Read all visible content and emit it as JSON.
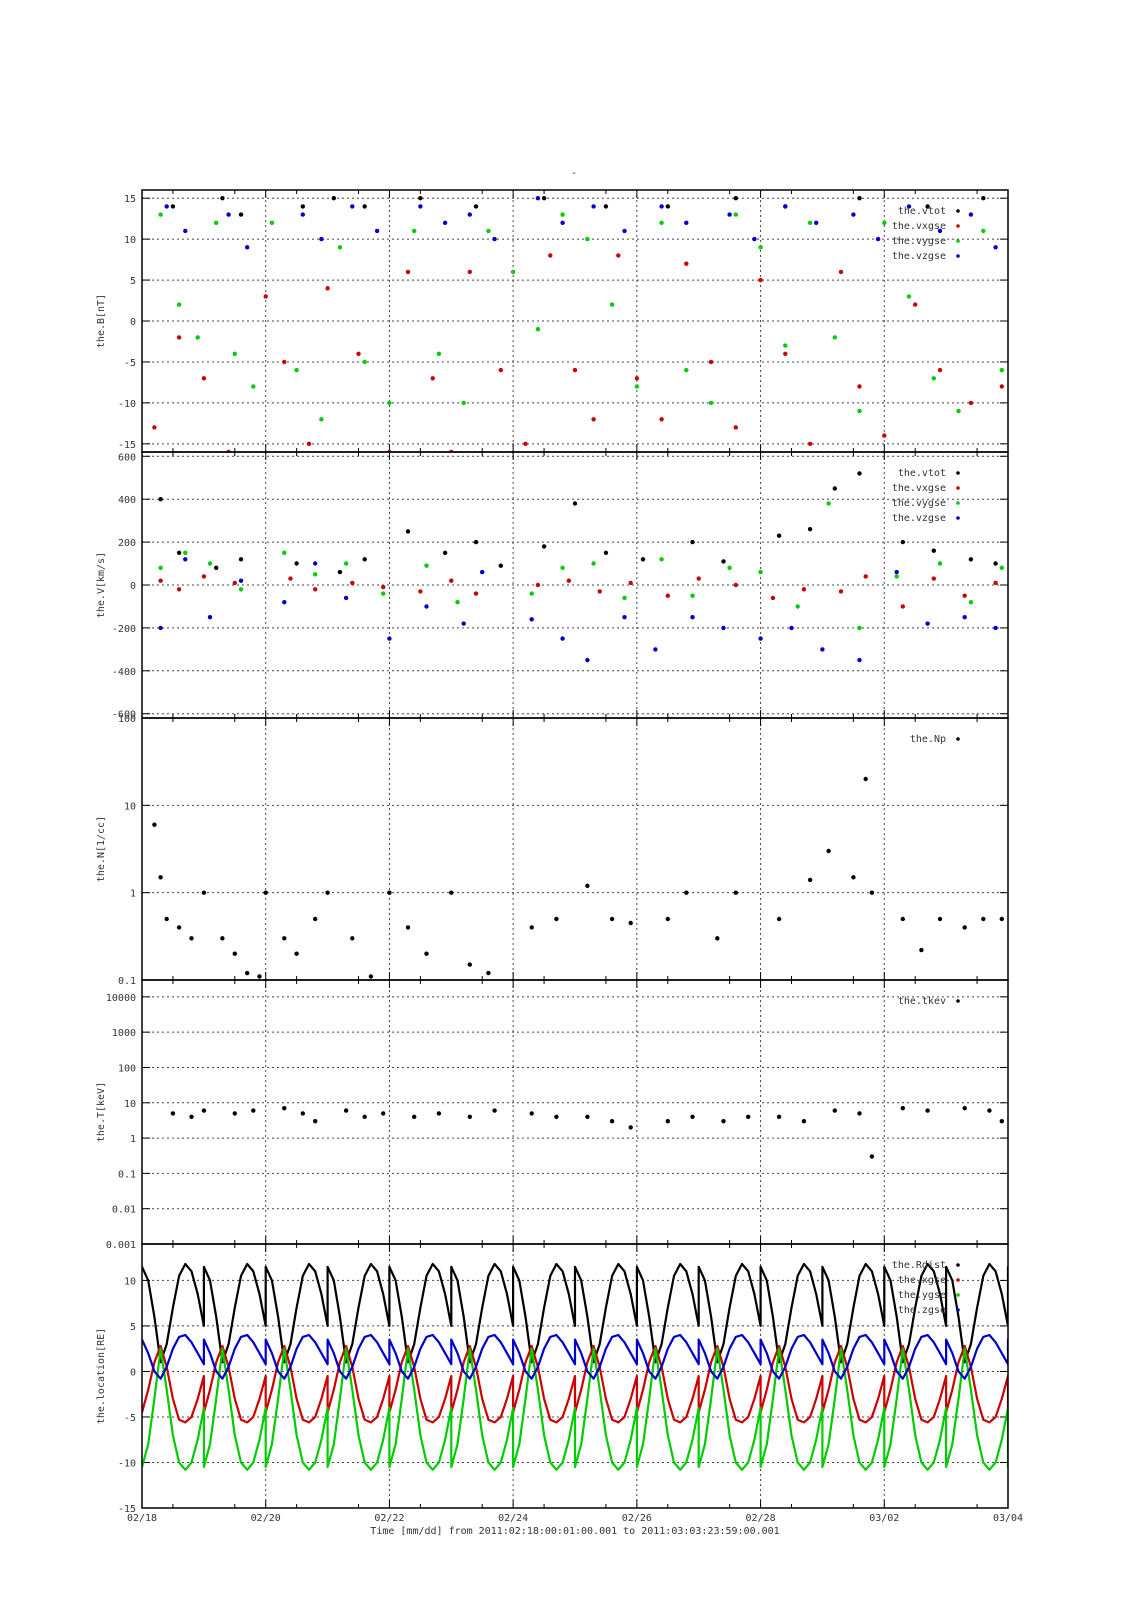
{
  "top_mark": "-",
  "xaxis": {
    "title": "Time [mm/dd]  from 2011:02:18:00:01:00.001  to  2011:03:03:23:59:00.001",
    "ticks": [
      "02/18",
      "02/20",
      "02/22",
      "02/24",
      "02/26",
      "02/28",
      "03/02",
      "03/04"
    ],
    "tick_days": [
      0,
      2,
      4,
      6,
      8,
      10,
      12,
      14
    ],
    "range_days": [
      0,
      14
    ],
    "vgrid_days": [
      2,
      4,
      6,
      8,
      10,
      12
    ]
  },
  "colors": {
    "black": "#000000",
    "red": "#cc0000",
    "green": "#00cc00",
    "blue": "#0000cc"
  },
  "chart_data": [
    {
      "type": "scatter",
      "ylabel": "the.B[nT]",
      "ylim": [
        -16,
        16
      ],
      "yticks": [
        15,
        10,
        5,
        0,
        -5,
        -10,
        -15
      ],
      "ytick_labels": [
        "15",
        "10",
        "5",
        "0",
        "-5",
        "-10",
        "-15"
      ],
      "legend_placement": "top-right",
      "series": [
        {
          "name": "the.vtot",
          "color": "#000000",
          "x": [
            0.5,
            1.3,
            1.6,
            2.6,
            3.1,
            3.6,
            4.5,
            5.4,
            6.5,
            7.5,
            8.5,
            9.6,
            10.4,
            11.6,
            12.7,
            13.6
          ],
          "y": [
            14,
            15,
            13,
            14,
            15,
            14,
            15,
            14,
            15,
            14,
            14,
            15,
            14,
            15,
            14,
            15
          ]
        },
        {
          "name": "the.vxgse",
          "color": "#cc0000",
          "x": [
            0.2,
            0.6,
            1.0,
            1.4,
            2.0,
            2.3,
            2.7,
            3.0,
            3.5,
            4.0,
            4.3,
            4.7,
            5.0,
            5.3,
            5.8,
            6.2,
            6.6,
            7.0,
            7.3,
            7.7,
            8.0,
            8.4,
            8.8,
            9.2,
            9.6,
            10.0,
            10.4,
            10.8,
            11.3,
            11.6,
            12.0,
            12.5,
            12.9,
            13.4,
            13.9
          ],
          "y": [
            -13,
            -2,
            -7,
            -16,
            3,
            -5,
            -15,
            4,
            -4,
            -16,
            6,
            -7,
            -16,
            6,
            -6,
            -15,
            8,
            -6,
            -12,
            8,
            -7,
            -12,
            7,
            -5,
            -13,
            5,
            -4,
            -15,
            6,
            -8,
            -14,
            2,
            -6,
            -10,
            -8
          ]
        },
        {
          "name": "the.vygse",
          "color": "#00cc00",
          "x": [
            0.3,
            0.6,
            0.9,
            1.2,
            1.5,
            1.8,
            2.1,
            2.5,
            2.9,
            3.2,
            3.6,
            4.0,
            4.4,
            4.8,
            5.2,
            5.6,
            6.0,
            6.4,
            6.8,
            7.2,
            7.6,
            8.0,
            8.4,
            8.8,
            9.2,
            9.6,
            10.0,
            10.4,
            10.8,
            11.2,
            11.6,
            12.0,
            12.4,
            12.8,
            13.2,
            13.6,
            13.9
          ],
          "y": [
            13,
            2,
            -2,
            12,
            -4,
            -8,
            12,
            -6,
            -12,
            9,
            -5,
            -10,
            11,
            -4,
            -10,
            11,
            6,
            -1,
            13,
            10,
            2,
            -8,
            12,
            -6,
            -10,
            13,
            9,
            -3,
            12,
            -2,
            -11,
            12,
            3,
            -7,
            -11,
            11,
            -6
          ]
        },
        {
          "name": "the.vzgse",
          "color": "#0000cc",
          "x": [
            0.4,
            0.7,
            1.4,
            1.7,
            2.6,
            2.9,
            3.4,
            3.8,
            4.5,
            4.9,
            5.3,
            5.7,
            6.4,
            6.8,
            7.3,
            7.8,
            8.4,
            8.8,
            9.5,
            9.9,
            10.4,
            10.9,
            11.5,
            11.9,
            12.4,
            12.9,
            13.4,
            13.8
          ],
          "y": [
            14,
            11,
            13,
            9,
            13,
            10,
            14,
            11,
            14,
            12,
            13,
            10,
            15,
            12,
            14,
            11,
            14,
            12,
            13,
            10,
            14,
            12,
            13,
            10,
            14,
            11,
            13,
            9
          ]
        }
      ]
    },
    {
      "type": "scatter",
      "ylabel": "the.V[km/s]",
      "ylim": [
        -620,
        620
      ],
      "yticks": [
        600,
        400,
        200,
        0,
        -200,
        -400,
        -600
      ],
      "ytick_labels": [
        "600",
        "400",
        "200",
        "0",
        "-200",
        "-400",
        "-600"
      ],
      "legend_placement": "top-right",
      "series": [
        {
          "name": "the.vtot",
          "color": "#000000",
          "x": [
            0.3,
            0.6,
            1.2,
            1.6,
            2.5,
            3.2,
            3.6,
            4.3,
            4.9,
            5.4,
            5.8,
            6.5,
            7.0,
            7.5,
            8.1,
            8.9,
            9.4,
            10.3,
            10.8,
            11.2,
            11.6,
            12.3,
            12.8,
            13.4,
            13.8
          ],
          "y": [
            400,
            150,
            80,
            120,
            100,
            60,
            120,
            250,
            150,
            200,
            90,
            180,
            380,
            150,
            120,
            200,
            110,
            230,
            260,
            450,
            520,
            200,
            160,
            120,
            100
          ]
        },
        {
          "name": "the.vxgse",
          "color": "#cc0000",
          "x": [
            0.3,
            0.6,
            1.0,
            1.5,
            2.4,
            2.8,
            3.4,
            3.9,
            4.5,
            5.0,
            5.4,
            6.4,
            6.9,
            7.4,
            7.9,
            8.5,
            9.0,
            9.6,
            10.2,
            10.7,
            11.3,
            11.7,
            12.3,
            12.8,
            13.3,
            13.8
          ],
          "y": [
            20,
            -20,
            40,
            10,
            30,
            -20,
            10,
            -10,
            -30,
            20,
            -40,
            0,
            20,
            -30,
            10,
            -50,
            30,
            0,
            -60,
            -20,
            -30,
            40,
            -100,
            30,
            -50,
            10
          ]
        },
        {
          "name": "the.vygse",
          "color": "#00cc00",
          "x": [
            0.3,
            0.7,
            1.1,
            1.6,
            2.3,
            2.8,
            3.3,
            3.9,
            4.6,
            5.1,
            5.5,
            6.3,
            6.8,
            7.3,
            7.8,
            8.4,
            8.9,
            9.5,
            10.0,
            10.6,
            11.1,
            11.6,
            12.2,
            12.9,
            13.4,
            13.9
          ],
          "y": [
            80,
            150,
            100,
            -20,
            150,
            50,
            100,
            -40,
            90,
            -80,
            60,
            -40,
            80,
            100,
            -60,
            120,
            -50,
            80,
            60,
            -100,
            380,
            -200,
            40,
            100,
            -80,
            80
          ]
        },
        {
          "name": "the.vzgse",
          "color": "#0000cc",
          "x": [
            0.3,
            0.7,
            1.1,
            1.6,
            2.3,
            2.8,
            3.3,
            4.0,
            4.6,
            5.2,
            5.5,
            6.3,
            6.8,
            7.2,
            7.8,
            8.3,
            8.9,
            9.4,
            10.0,
            10.5,
            11.0,
            11.6,
            12.2,
            12.7,
            13.3,
            13.8
          ],
          "y": [
            -200,
            120,
            -150,
            20,
            -80,
            100,
            -60,
            -250,
            -100,
            -180,
            60,
            -160,
            -250,
            -350,
            -150,
            -300,
            -150,
            -200,
            -250,
            -200,
            -300,
            -350,
            60,
            -180,
            -150,
            -200
          ]
        }
      ]
    },
    {
      "type": "scatter",
      "ylabel": "the.N[1/cc]",
      "yscale": "log",
      "ylim": [
        0.1,
        100
      ],
      "yticks": [
        100,
        10,
        1,
        0.1
      ],
      "ytick_labels": [
        "100",
        "10",
        "1",
        "0.1"
      ],
      "legend_placement": "top-right",
      "series": [
        {
          "name": "the.Np",
          "color": "#000000",
          "x": [
            0.2,
            0.3,
            0.4,
            0.6,
            0.8,
            1.0,
            1.3,
            1.5,
            1.7,
            1.9,
            2.0,
            2.3,
            2.5,
            2.8,
            3.0,
            3.4,
            3.7,
            4.0,
            4.3,
            4.6,
            5.0,
            5.3,
            5.6,
            6.3,
            6.7,
            7.2,
            7.6,
            7.9,
            8.5,
            8.8,
            9.3,
            9.6,
            10.3,
            10.8,
            11.1,
            11.5,
            11.7,
            11.8,
            12.3,
            12.6,
            12.9,
            13.3,
            13.6,
            13.9
          ],
          "y": [
            6,
            1.5,
            0.5,
            0.4,
            0.3,
            1.0,
            0.3,
            0.2,
            0.12,
            0.11,
            1.0,
            0.3,
            0.2,
            0.5,
            1.0,
            0.3,
            0.11,
            1.0,
            0.4,
            0.2,
            1.0,
            0.15,
            0.12,
            0.4,
            0.5,
            1.2,
            0.5,
            0.45,
            0.5,
            1.0,
            0.3,
            1.0,
            0.5,
            1.4,
            3.0,
            1.5,
            20,
            1.0,
            0.5,
            0.22,
            0.5,
            0.4,
            0.5,
            0.5
          ]
        }
      ]
    },
    {
      "type": "scatter",
      "ylabel": "the.T[keV]",
      "yscale": "log",
      "ylim": [
        0.001,
        30000
      ],
      "yticks": [
        10000,
        1000,
        100,
        10,
        1,
        0.1,
        0.01,
        0.001
      ],
      "ytick_labels": [
        "10000",
        "1000",
        "100",
        "10",
        "1",
        "0.1",
        "0.01",
        "0.001"
      ],
      "legend_placement": "top-right",
      "series": [
        {
          "name": "the.tkev",
          "color": "#000000",
          "x": [
            0.5,
            0.8,
            1.0,
            1.5,
            1.8,
            2.3,
            2.6,
            2.8,
            3.3,
            3.6,
            3.9,
            4.4,
            4.8,
            5.3,
            5.7,
            6.3,
            6.7,
            7.2,
            7.6,
            7.9,
            8.5,
            8.9,
            9.4,
            9.8,
            10.3,
            10.7,
            11.2,
            11.6,
            11.8,
            12.3,
            12.7,
            13.3,
            13.7,
            13.9
          ],
          "y": [
            5,
            4,
            6,
            5,
            6,
            7,
            5,
            3,
            6,
            4,
            5,
            4,
            5,
            4,
            6,
            5,
            4,
            4,
            3,
            2,
            3,
            4,
            3,
            4,
            4,
            3,
            6,
            5,
            0.3,
            7,
            6,
            7,
            6,
            3
          ]
        }
      ]
    },
    {
      "type": "line",
      "ylabel": "the.location[RE]",
      "ylim": [
        -15,
        14
      ],
      "yticks": [
        10,
        5,
        0,
        -5,
        -10,
        -15
      ],
      "ytick_labels": [
        "10",
        "5",
        "0",
        "-5",
        "-10",
        "-15"
      ],
      "legend_placement": "top-right",
      "orbit_period_days": 1.0,
      "series": [
        {
          "name": "the.Rdist",
          "color": "#000000",
          "x": [
            0.0,
            0.1,
            0.2,
            0.3,
            0.4,
            0.5,
            0.6,
            0.7,
            0.8,
            0.9,
            1.0
          ],
          "y": [
            11.5,
            10.0,
            6.0,
            1.0,
            3.0,
            7.0,
            10.5,
            11.8,
            11.0,
            8.5,
            5.0
          ]
        },
        {
          "name": "the.xgse",
          "color": "#cc0000",
          "x": [
            0.0,
            0.1,
            0.2,
            0.3,
            0.4,
            0.5,
            0.6,
            0.7,
            0.8,
            0.9,
            1.0
          ],
          "y": [
            -4.5,
            -2.0,
            1.0,
            2.8,
            0.5,
            -3.0,
            -5.3,
            -5.6,
            -5.0,
            -3.0,
            -0.5
          ]
        },
        {
          "name": "the.ygse",
          "color": "#00cc00",
          "x": [
            0.0,
            0.1,
            0.2,
            0.3,
            0.4,
            0.5,
            0.6,
            0.7,
            0.8,
            0.9,
            1.0
          ],
          "y": [
            -10.5,
            -8.0,
            -3.0,
            2.5,
            -2.0,
            -7.0,
            -10.0,
            -10.8,
            -10.0,
            -7.5,
            -4.0
          ]
        },
        {
          "name": "the.zgse",
          "color": "#0000cc",
          "x": [
            0.0,
            0.1,
            0.2,
            0.3,
            0.4,
            0.5,
            0.6,
            0.7,
            0.8,
            0.9,
            1.0
          ],
          "y": [
            3.5,
            2.0,
            0.0,
            -0.8,
            0.5,
            2.5,
            3.8,
            4.0,
            3.2,
            2.0,
            0.8
          ]
        }
      ]
    }
  ]
}
